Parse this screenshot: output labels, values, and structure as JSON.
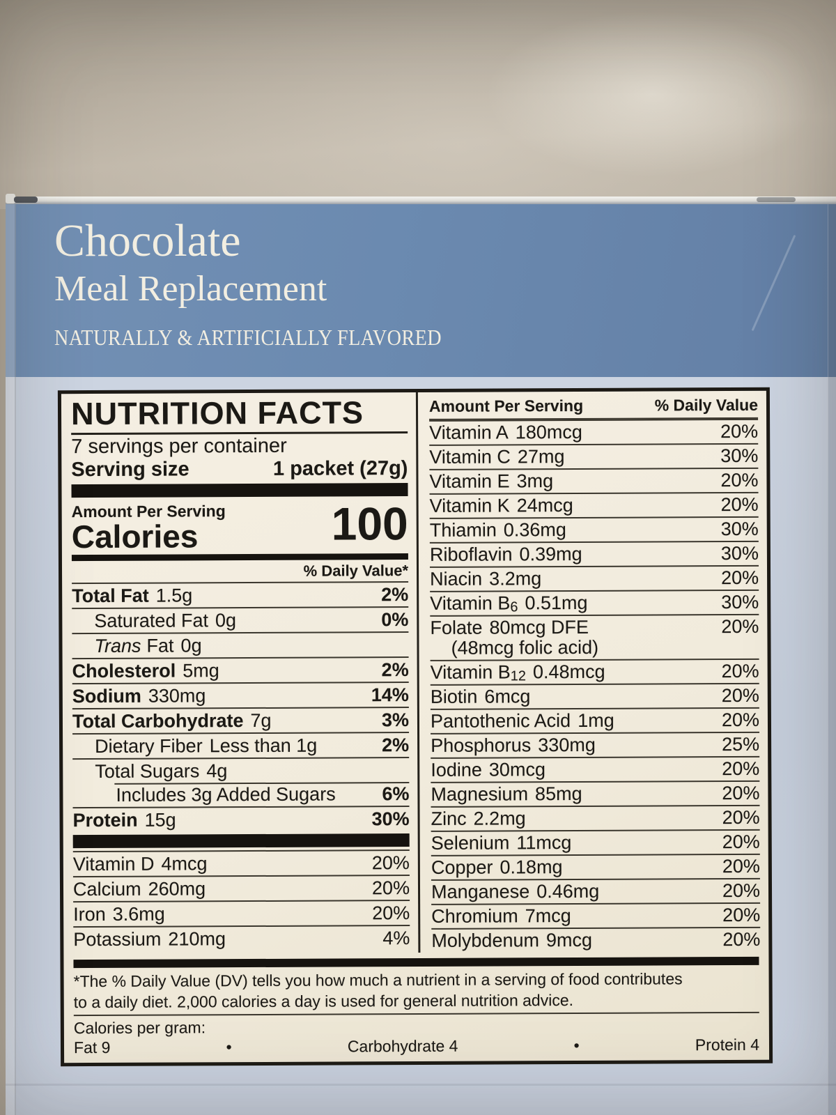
{
  "colors": {
    "band_blue": "#6b8ab0",
    "box_face": "#c7d0de",
    "label_background": "#f1ebdc",
    "wall_tan": "#b9b0a2",
    "label_text": "#1b1915",
    "header_text": "#f2eee1"
  },
  "product": {
    "flavor": "Chocolate",
    "name": "Meal Replacement",
    "tagline": "NATURALLY & ARTIFICIALLY FLAVORED"
  },
  "label": {
    "title": "NUTRITION FACTS",
    "servings_per_container": "7 servings per container",
    "serving_size_label": "Serving size",
    "serving_size_value": "1 packet (27g)",
    "amount_per_serving": "Amount Per Serving",
    "calories_label": "Calories",
    "calories_value": "100",
    "daily_value_header": "% Daily Value*",
    "main_rows": [
      {
        "name": "Total Fat",
        "amount": "1.5g",
        "dv": "2%",
        "cls": "b"
      },
      {
        "name": "Saturated Fat",
        "amount": "0g",
        "dv": "0%",
        "cls": "i1"
      },
      {
        "it": "Trans",
        "name": "Fat",
        "amount": "0g",
        "dv": "",
        "cls": "i1"
      },
      {
        "name": "Cholesterol",
        "amount": "5mg",
        "dv": "2%",
        "cls": "b"
      },
      {
        "name": "Sodium",
        "amount": "330mg",
        "dv": "14%",
        "cls": "b"
      },
      {
        "name": "Total Carbohydrate",
        "amount": "7g",
        "dv": "3%",
        "cls": "b"
      },
      {
        "name": "Dietary Fiber",
        "amount": "Less than 1g",
        "dv": "2%",
        "cls": "i1"
      },
      {
        "name": "Total Sugars",
        "amount": "4g",
        "dv": "",
        "cls": "i1"
      },
      {
        "name": "Includes 3g Added Sugars",
        "amount": "",
        "dv": "6%",
        "cls": "i2 rind"
      },
      {
        "name": "Protein",
        "amount": "15g",
        "dv": "30%",
        "cls": "b"
      }
    ],
    "vitamin_mineral_rows_left": [
      {
        "name": "Vitamin D",
        "amount": "4mcg",
        "dv": "20%"
      },
      {
        "name": "Calcium",
        "amount": "260mg",
        "dv": "20%"
      },
      {
        "name": "Iron",
        "amount": "3.6mg",
        "dv": "20%"
      },
      {
        "name": "Potassium",
        "amount": "210mg",
        "dv": "4%"
      }
    ],
    "right_column": {
      "header_amount": "Amount Per Serving",
      "header_dv": "% Daily Value",
      "rows": [
        {
          "name": "Vitamin A",
          "amount": "180mcg",
          "dv": "20%"
        },
        {
          "name": "Vitamin C",
          "amount": "27mg",
          "dv": "30%"
        },
        {
          "name": "Vitamin E",
          "amount": "3mg",
          "dv": "20%"
        },
        {
          "name": "Vitamin K",
          "amount": "24mcg",
          "dv": "20%"
        },
        {
          "name": "Thiamin",
          "amount": "0.36mg",
          "dv": "30%"
        },
        {
          "name": "Riboflavin",
          "amount": "0.39mg",
          "dv": "30%"
        },
        {
          "name": "Niacin",
          "amount": "3.2mg",
          "dv": "20%"
        },
        {
          "name": "Vitamin B",
          "sub": "6",
          "amount": "0.51mg",
          "dv": "30%"
        },
        {
          "name": "Folate",
          "amount": "80mcg DFE",
          "dv": "20%",
          "note": "(48mcg folic acid)"
        },
        {
          "name": "Vitamin B",
          "sub": "12",
          "amount": "0.48mcg",
          "dv": "20%"
        },
        {
          "name": "Biotin",
          "amount": "6mcg",
          "dv": "20%"
        },
        {
          "name": "Pantothenic Acid",
          "amount": "1mg",
          "dv": "20%"
        },
        {
          "name": "Phosphorus",
          "amount": "330mg",
          "dv": "25%"
        },
        {
          "name": "Iodine",
          "amount": "30mcg",
          "dv": "20%"
        },
        {
          "name": "Magnesium",
          "amount": "85mg",
          "dv": "20%"
        },
        {
          "name": "Zinc",
          "amount": "2.2mg",
          "dv": "20%"
        },
        {
          "name": "Selenium",
          "amount": "11mcg",
          "dv": "20%"
        },
        {
          "name": "Copper",
          "amount": "0.18mg",
          "dv": "20%"
        },
        {
          "name": "Manganese",
          "amount": "0.46mg",
          "dv": "20%"
        },
        {
          "name": "Chromium",
          "amount": "7mcg",
          "dv": "20%"
        },
        {
          "name": "Molybdenum",
          "amount": "9mcg",
          "dv": "20%"
        }
      ]
    },
    "footnote_line1": "*The % Daily Value (DV) tells you how much a nutrient in a serving of food contributes",
    "footnote_line2": "to a daily diet. 2,000 calories a day is used for general nutrition advice.",
    "calories_per_gram": {
      "title": "Calories per gram:",
      "fat": "Fat 9",
      "bullet": "•",
      "carbohydrate": "Carbohydrate 4",
      "protein": "Protein 4"
    }
  }
}
